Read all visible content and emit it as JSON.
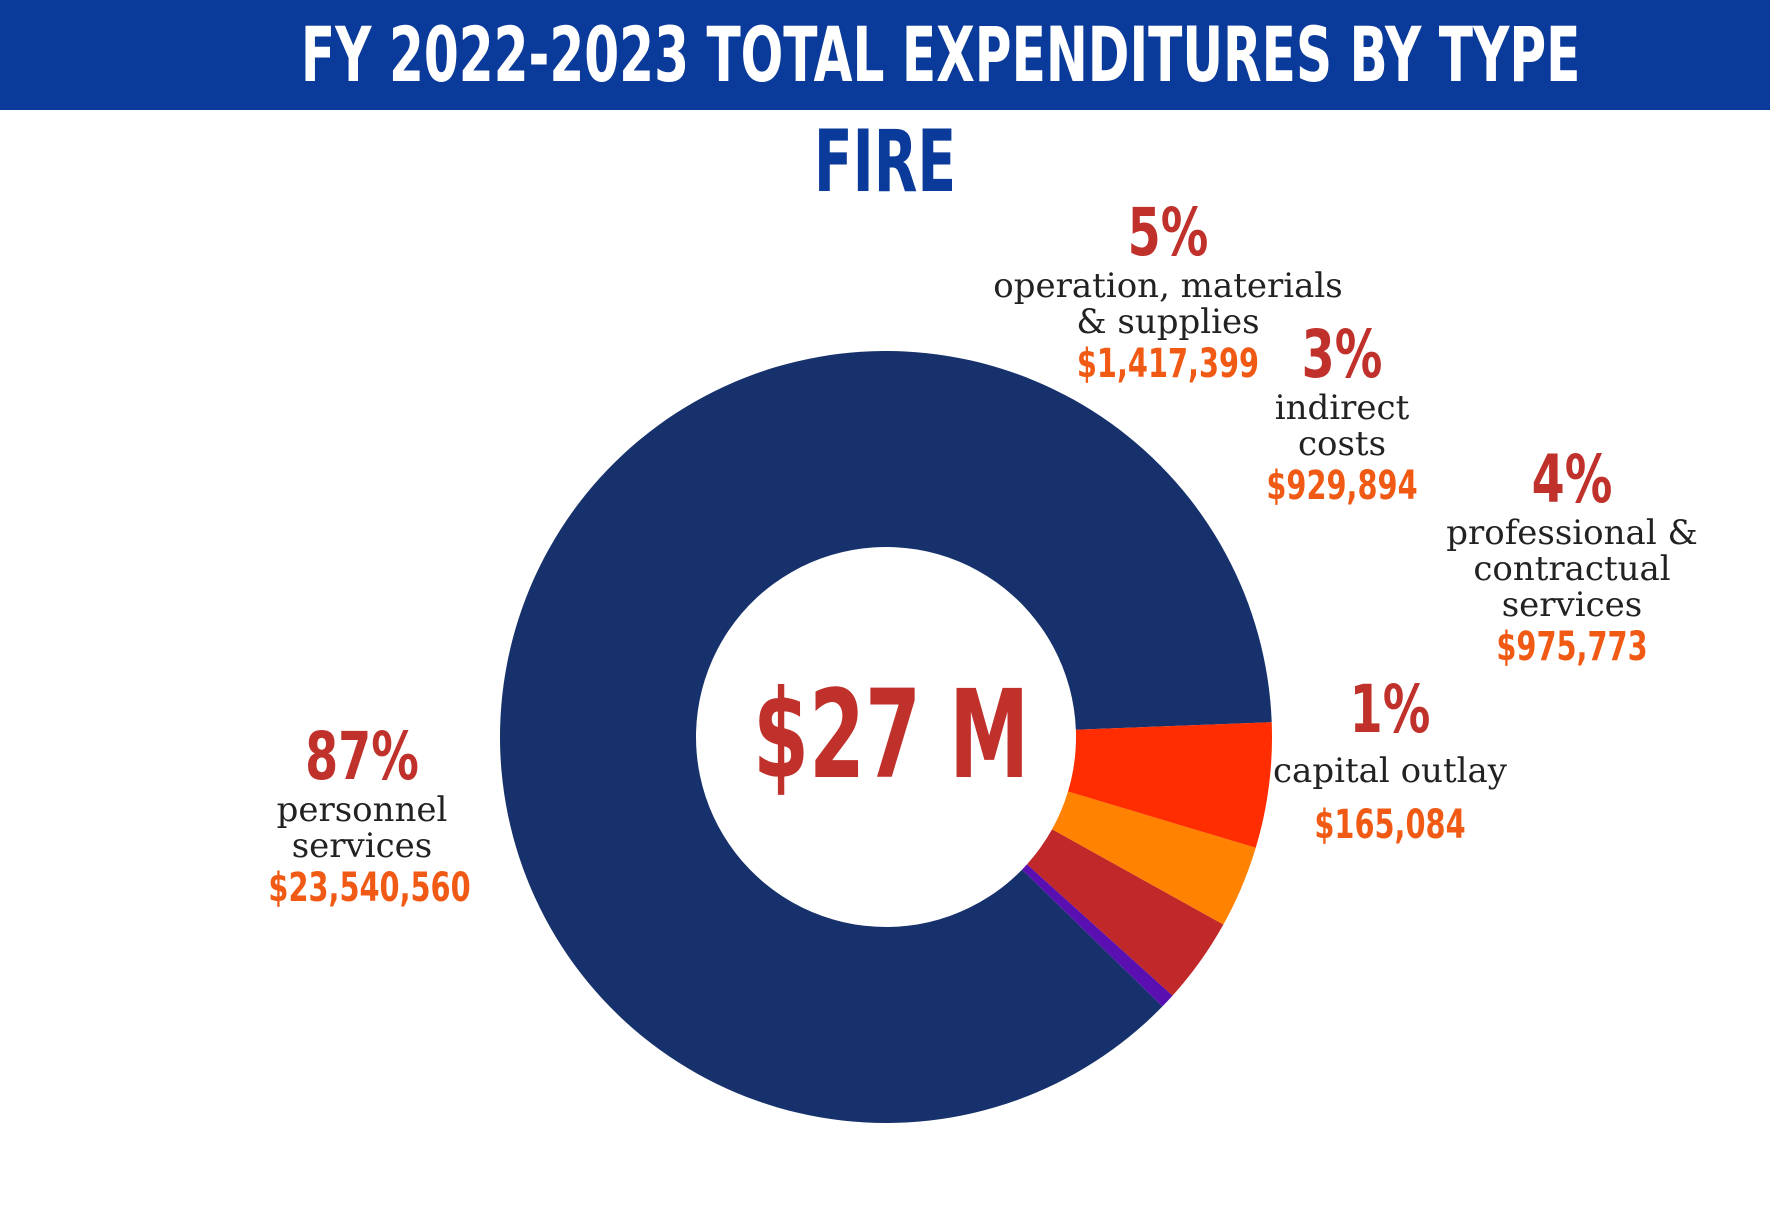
{
  "chart_data": {
    "type": "pie",
    "title": "FY 2022-2023 TOTAL EXPENDITURES BY TYPE",
    "subtitle": "FIRE",
    "center_label": "$27 M",
    "slices": [
      {
        "key": "personnel",
        "name_lines": [
          "personnel",
          "services"
        ],
        "percent_label": "87%",
        "amount_label": "$23,540,560",
        "value": 23540560,
        "color": "#16316b"
      },
      {
        "key": "capital",
        "name_lines": [
          "capital outlay"
        ],
        "percent_label": "1%",
        "amount_label": "$165,084",
        "value": 165084,
        "color": "#5a0fb0"
      },
      {
        "key": "professional",
        "name_lines": [
          "professional &",
          "contractual",
          "services"
        ],
        "percent_label": "4%",
        "amount_label": "$975,773",
        "value": 975773,
        "color": "#c0282a"
      },
      {
        "key": "indirect",
        "name_lines": [
          "indirect",
          "costs"
        ],
        "percent_label": "3%",
        "amount_label": "$929,894",
        "value": 929894,
        "color": "#ff8200"
      },
      {
        "key": "operation",
        "name_lines": [
          "operation, materials",
          "& supplies"
        ],
        "percent_label": "5%",
        "amount_label": "$1,417,399",
        "value": 1417399,
        "color": "#ff2d00"
      }
    ]
  }
}
